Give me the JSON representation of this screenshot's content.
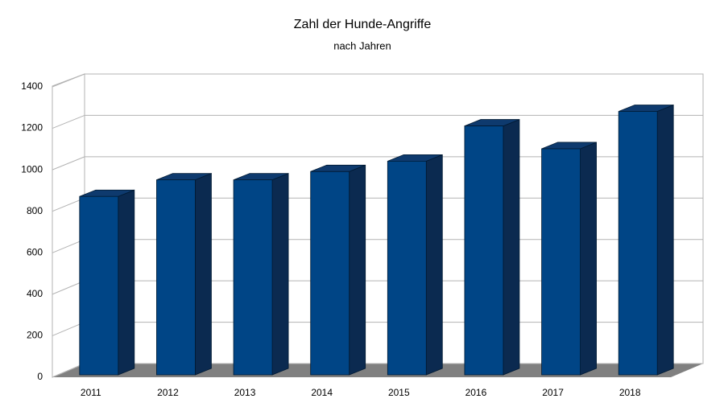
{
  "chart_data": {
    "type": "bar",
    "title": "Zahl der Hunde-Angriffe",
    "subtitle": "nach Jahren",
    "categories": [
      "2011",
      "2012",
      "2013",
      "2014",
      "2015",
      "2016",
      "2017",
      "2018"
    ],
    "values": [
      860,
      940,
      940,
      980,
      1030,
      1200,
      1090,
      1270
    ],
    "color": "#004586",
    "ylim": [
      0,
      1400
    ],
    "yticks": [
      0,
      200,
      400,
      600,
      800,
      1000,
      1200,
      1400
    ],
    "grid": true
  }
}
